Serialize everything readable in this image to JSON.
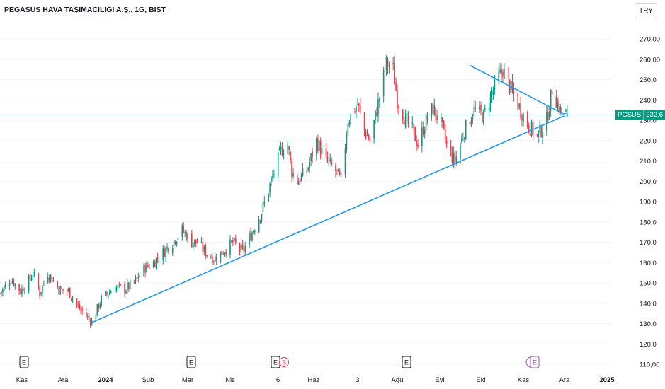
{
  "header": {
    "title": "PEGASUS HAVA TAŞIMACILIĞI A.Ş., 1G, BIST",
    "currency": "TRY"
  },
  "price_tag": {
    "symbol": "PGSUS",
    "value": "232,6"
  },
  "event_markers": {
    "earnings": "E",
    "split": "S"
  },
  "colors": {
    "up": "#089981",
    "down": "#f23645",
    "trendline": "#2196f3",
    "last_price_line": "#089981"
  },
  "chart_data": {
    "type": "candlestick",
    "title": "PEGASUS HAVA TAŞIMACILIĞI A.Ş., 1G, BIST",
    "ylim": [
      107,
      276
    ],
    "y_ticks": [
      "110,00",
      "120,0",
      "130,0",
      "140,0",
      "150,0",
      "160,0",
      "170,0",
      "180,0",
      "190,0",
      "200,0",
      "210,0",
      "220,0",
      "230,0",
      "240,0",
      "250,0",
      "260,00",
      "270,00"
    ],
    "y_tick_values": [
      110,
      120,
      130,
      140,
      150,
      160,
      170,
      180,
      190,
      200,
      210,
      220,
      230,
      240,
      250,
      260,
      270
    ],
    "x_ticks": [
      "Kas",
      "Ara",
      "2024",
      "Şub",
      "Mar",
      "Nis",
      "6",
      "Haz",
      "3",
      "Ağu",
      "Eyl",
      "Eki",
      "Kas",
      "Ara",
      "2025"
    ],
    "x_tick_dates": [
      "2023-11-01",
      "2023-12-01",
      "2024-01-01",
      "2024-02-01",
      "2024-03-01",
      "2024-04-01",
      "2024-05-06",
      "2024-06-01",
      "2024-07-03",
      "2024-08-01",
      "2024-09-01",
      "2024-10-01",
      "2024-11-01",
      "2024-12-01",
      "2025-01-01"
    ],
    "last_price": 232.6,
    "trendlines": [
      {
        "name": "support",
        "from": {
          "date": "2023-12-22",
          "price": 130.5
        },
        "to": {
          "date": "2024-12-02",
          "price": 232.5
        }
      },
      {
        "name": "resistance",
        "from": {
          "date": "2024-09-23",
          "price": 257
        },
        "to": {
          "date": "2024-12-02",
          "price": 232.5
        }
      }
    ],
    "anchor_closes": [
      [
        "2023-10-16",
        145
      ],
      [
        "2023-10-24",
        152
      ],
      [
        "2023-10-31",
        146
      ],
      [
        "2023-11-07",
        152
      ],
      [
        "2023-11-09",
        155
      ],
      [
        "2023-11-14",
        145
      ],
      [
        "2023-11-20",
        155
      ],
      [
        "2023-11-28",
        147
      ],
      [
        "2023-12-05",
        146
      ],
      [
        "2023-12-12",
        138
      ],
      [
        "2023-12-19",
        133
      ],
      [
        "2023-12-22",
        131
      ],
      [
        "2023-12-29",
        142
      ],
      [
        "2024-01-08",
        148
      ],
      [
        "2024-01-15",
        147
      ],
      [
        "2024-01-22",
        150
      ],
      [
        "2024-01-29",
        157
      ],
      [
        "2024-02-05",
        160
      ],
      [
        "2024-02-12",
        165
      ],
      [
        "2024-02-19",
        170
      ],
      [
        "2024-02-26",
        176
      ],
      [
        "2024-03-04",
        170
      ],
      [
        "2024-03-08",
        170
      ],
      [
        "2024-03-14",
        165
      ],
      [
        "2024-03-20",
        162
      ],
      [
        "2024-03-26",
        165
      ],
      [
        "2024-04-03",
        170
      ],
      [
        "2024-04-10",
        165
      ],
      [
        "2024-04-17",
        175
      ],
      [
        "2024-04-24",
        185
      ],
      [
        "2024-05-01",
        200
      ],
      [
        "2024-05-08",
        215
      ],
      [
        "2024-05-13",
        218
      ],
      [
        "2024-05-16",
        205
      ],
      [
        "2024-05-20",
        200
      ],
      [
        "2024-05-27",
        205
      ],
      [
        "2024-06-03",
        220
      ],
      [
        "2024-06-10",
        210
      ],
      [
        "2024-06-17",
        205
      ],
      [
        "2024-06-21",
        200
      ],
      [
        "2024-06-26",
        230
      ],
      [
        "2024-07-03",
        238
      ],
      [
        "2024-07-08",
        225
      ],
      [
        "2024-07-12",
        220
      ],
      [
        "2024-07-17",
        235
      ],
      [
        "2024-07-24",
        258
      ],
      [
        "2024-07-29",
        255
      ],
      [
        "2024-08-01",
        240
      ],
      [
        "2024-08-07",
        230
      ],
      [
        "2024-08-12",
        225
      ],
      [
        "2024-08-16",
        218
      ],
      [
        "2024-08-22",
        230
      ],
      [
        "2024-08-27",
        236
      ],
      [
        "2024-09-02",
        228
      ],
      [
        "2024-09-07",
        215
      ],
      [
        "2024-09-12",
        210
      ],
      [
        "2024-09-19",
        225
      ],
      [
        "2024-09-26",
        235
      ],
      [
        "2024-10-03",
        232
      ],
      [
        "2024-10-10",
        245
      ],
      [
        "2024-10-17",
        255
      ],
      [
        "2024-10-21",
        248
      ],
      [
        "2024-10-28",
        238
      ],
      [
        "2024-11-04",
        228
      ],
      [
        "2024-11-11",
        222
      ],
      [
        "2024-11-18",
        230
      ],
      [
        "2024-11-22",
        245
      ],
      [
        "2024-11-28",
        235
      ],
      [
        "2024-12-03",
        232.6
      ]
    ]
  }
}
